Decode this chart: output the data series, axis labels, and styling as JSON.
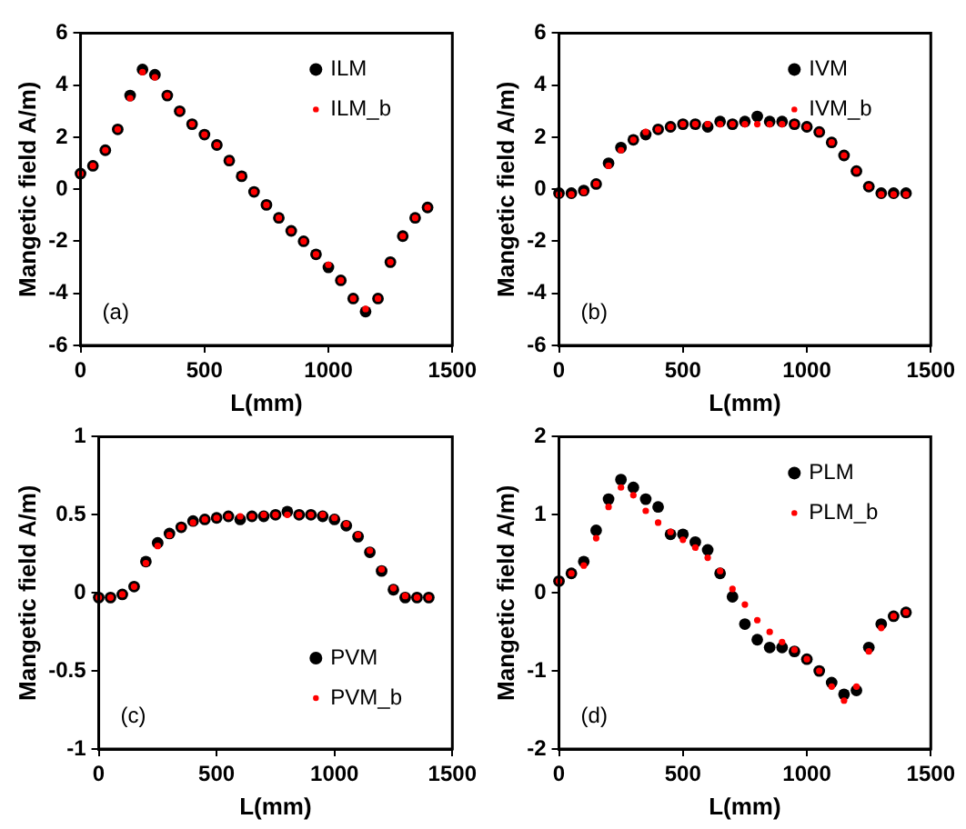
{
  "chart_data": [
    {
      "type": "scatter",
      "xlabel": "L(mm)",
      "ylabel": "Mangetic field A/m)",
      "xlim": [
        0,
        1500
      ],
      "xticks": [
        0,
        500,
        1000,
        1500
      ],
      "ylim": [
        -6,
        6
      ],
      "yticks": [
        -6,
        -4,
        -2,
        0,
        2,
        4,
        6
      ],
      "legend": "top right",
      "annotations": [
        "(a)"
      ],
      "x": [
        0,
        50,
        100,
        150,
        200,
        250,
        300,
        350,
        400,
        450,
        500,
        550,
        600,
        650,
        700,
        750,
        800,
        850,
        900,
        950,
        1000,
        1050,
        1100,
        1150,
        1200,
        1250,
        1300,
        1350,
        1400
      ],
      "series": [
        {
          "name": "ILM",
          "color": "#000000",
          "marker": "circle",
          "values": [
            0.6,
            0.9,
            1.5,
            2.3,
            3.6,
            4.6,
            4.4,
            3.6,
            3.0,
            2.5,
            2.1,
            1.7,
            1.1,
            0.5,
            -0.1,
            -0.6,
            -1.1,
            -1.6,
            -2.0,
            -2.5,
            -3.0,
            -3.5,
            -4.2,
            -4.7,
            -4.2,
            -2.8,
            -1.8,
            -1.1,
            -0.7
          ]
        },
        {
          "name": "ILM_b",
          "color": "#ff0000",
          "marker": "circle",
          "values": [
            0.6,
            0.9,
            1.5,
            2.3,
            3.5,
            4.5,
            4.3,
            3.6,
            3.0,
            2.5,
            2.1,
            1.7,
            1.1,
            0.5,
            -0.1,
            -0.6,
            -1.1,
            -1.6,
            -2.0,
            -2.5,
            -2.9,
            -3.5,
            -4.2,
            -4.6,
            -4.2,
            -2.8,
            -1.8,
            -1.1,
            -0.7
          ]
        }
      ]
    },
    {
      "type": "scatter",
      "xlabel": "L(mm)",
      "ylabel": "Mangetic field A/m)",
      "xlim": [
        0,
        1500
      ],
      "xticks": [
        0,
        500,
        1000,
        1500
      ],
      "ylim": [
        -6,
        6
      ],
      "yticks": [
        -6,
        -4,
        -2,
        0,
        2,
        4,
        6
      ],
      "legend": "top right",
      "annotations": [
        "(b)"
      ],
      "x": [
        0,
        50,
        100,
        150,
        200,
        250,
        300,
        350,
        400,
        450,
        500,
        550,
        600,
        650,
        700,
        750,
        800,
        850,
        900,
        950,
        1000,
        1050,
        1100,
        1150,
        1200,
        1250,
        1300,
        1350,
        1400
      ],
      "series": [
        {
          "name": "IVM",
          "color": "#000000",
          "marker": "circle",
          "values": [
            -0.15,
            -0.15,
            -0.05,
            0.2,
            1.0,
            1.6,
            1.9,
            2.1,
            2.3,
            2.4,
            2.5,
            2.5,
            2.4,
            2.6,
            2.5,
            2.6,
            2.8,
            2.6,
            2.6,
            2.5,
            2.4,
            2.2,
            1.8,
            1.3,
            0.7,
            0.1,
            -0.15,
            -0.15,
            -0.15
          ]
        },
        {
          "name": "IVM_b",
          "color": "#ff0000",
          "marker": "circle",
          "values": [
            -0.2,
            -0.2,
            -0.1,
            0.2,
            0.9,
            1.5,
            1.9,
            2.2,
            2.3,
            2.4,
            2.5,
            2.5,
            2.5,
            2.5,
            2.5,
            2.5,
            2.5,
            2.5,
            2.5,
            2.5,
            2.4,
            2.2,
            1.8,
            1.3,
            0.7,
            0.1,
            -0.2,
            -0.2,
            -0.2
          ]
        }
      ]
    },
    {
      "type": "scatter",
      "xlabel": "L(mm)",
      "ylabel": "Mangetic field A/m)",
      "xlim": [
        0,
        1500
      ],
      "xticks": [
        0,
        500,
        1000,
        1500
      ],
      "ylim": [
        -1,
        1
      ],
      "yticks": [
        -1,
        -0.5,
        0,
        0.5,
        1
      ],
      "legend": "bottom right",
      "annotations": [
        "(c)"
      ],
      "x": [
        0,
        50,
        100,
        150,
        200,
        250,
        300,
        350,
        400,
        450,
        500,
        550,
        600,
        650,
        700,
        750,
        800,
        850,
        900,
        950,
        1000,
        1050,
        1100,
        1150,
        1200,
        1250,
        1300,
        1350,
        1400
      ],
      "series": [
        {
          "name": "PVM",
          "color": "#000000",
          "marker": "circle",
          "values": [
            -0.03,
            -0.03,
            -0.01,
            0.04,
            0.2,
            0.32,
            0.38,
            0.42,
            0.46,
            0.47,
            0.48,
            0.49,
            0.47,
            0.49,
            0.49,
            0.5,
            0.52,
            0.5,
            0.5,
            0.49,
            0.47,
            0.43,
            0.36,
            0.26,
            0.14,
            0.02,
            -0.03,
            -0.03,
            -0.03
          ]
        },
        {
          "name": "PVM_b",
          "color": "#ff0000",
          "marker": "circle",
          "values": [
            -0.03,
            -0.03,
            -0.01,
            0.04,
            0.19,
            0.3,
            0.37,
            0.42,
            0.45,
            0.47,
            0.48,
            0.49,
            0.49,
            0.49,
            0.5,
            0.5,
            0.5,
            0.5,
            0.5,
            0.5,
            0.48,
            0.44,
            0.37,
            0.27,
            0.15,
            0.03,
            -0.02,
            -0.03,
            -0.03
          ]
        }
      ]
    },
    {
      "type": "scatter",
      "xlabel": "L(mm)",
      "ylabel": "Mangetic field A/m)",
      "xlim": [
        0,
        1500
      ],
      "xticks": [
        0,
        500,
        1000,
        1500
      ],
      "ylim": [
        -2,
        2
      ],
      "yticks": [
        -2,
        -1,
        0,
        1,
        2
      ],
      "legend": "top right",
      "annotations": [
        "(d)"
      ],
      "x": [
        0,
        50,
        100,
        150,
        200,
        250,
        300,
        350,
        400,
        450,
        500,
        550,
        600,
        650,
        700,
        750,
        800,
        850,
        900,
        950,
        1000,
        1050,
        1100,
        1150,
        1200,
        1250,
        1300,
        1350,
        1400
      ],
      "series": [
        {
          "name": "PLM",
          "color": "#000000",
          "marker": "circle",
          "values": [
            0.15,
            0.25,
            0.4,
            0.8,
            1.2,
            1.45,
            1.35,
            1.2,
            1.1,
            0.75,
            0.75,
            0.65,
            0.55,
            0.25,
            -0.05,
            -0.4,
            -0.6,
            -0.7,
            -0.7,
            -0.75,
            -0.85,
            -1.0,
            -1.15,
            -1.3,
            -1.25,
            -0.7,
            -0.4,
            -0.3,
            -0.25
          ]
        },
        {
          "name": "PLM_b",
          "color": "#ff0000",
          "marker": "circle",
          "values": [
            0.15,
            0.25,
            0.35,
            0.7,
            1.1,
            1.35,
            1.25,
            1.05,
            0.9,
            0.78,
            0.68,
            0.58,
            0.45,
            0.28,
            0.05,
            -0.15,
            -0.35,
            -0.5,
            -0.63,
            -0.73,
            -0.85,
            -1.0,
            -1.2,
            -1.38,
            -1.2,
            -0.75,
            -0.45,
            -0.3,
            -0.25
          ]
        }
      ]
    }
  ]
}
